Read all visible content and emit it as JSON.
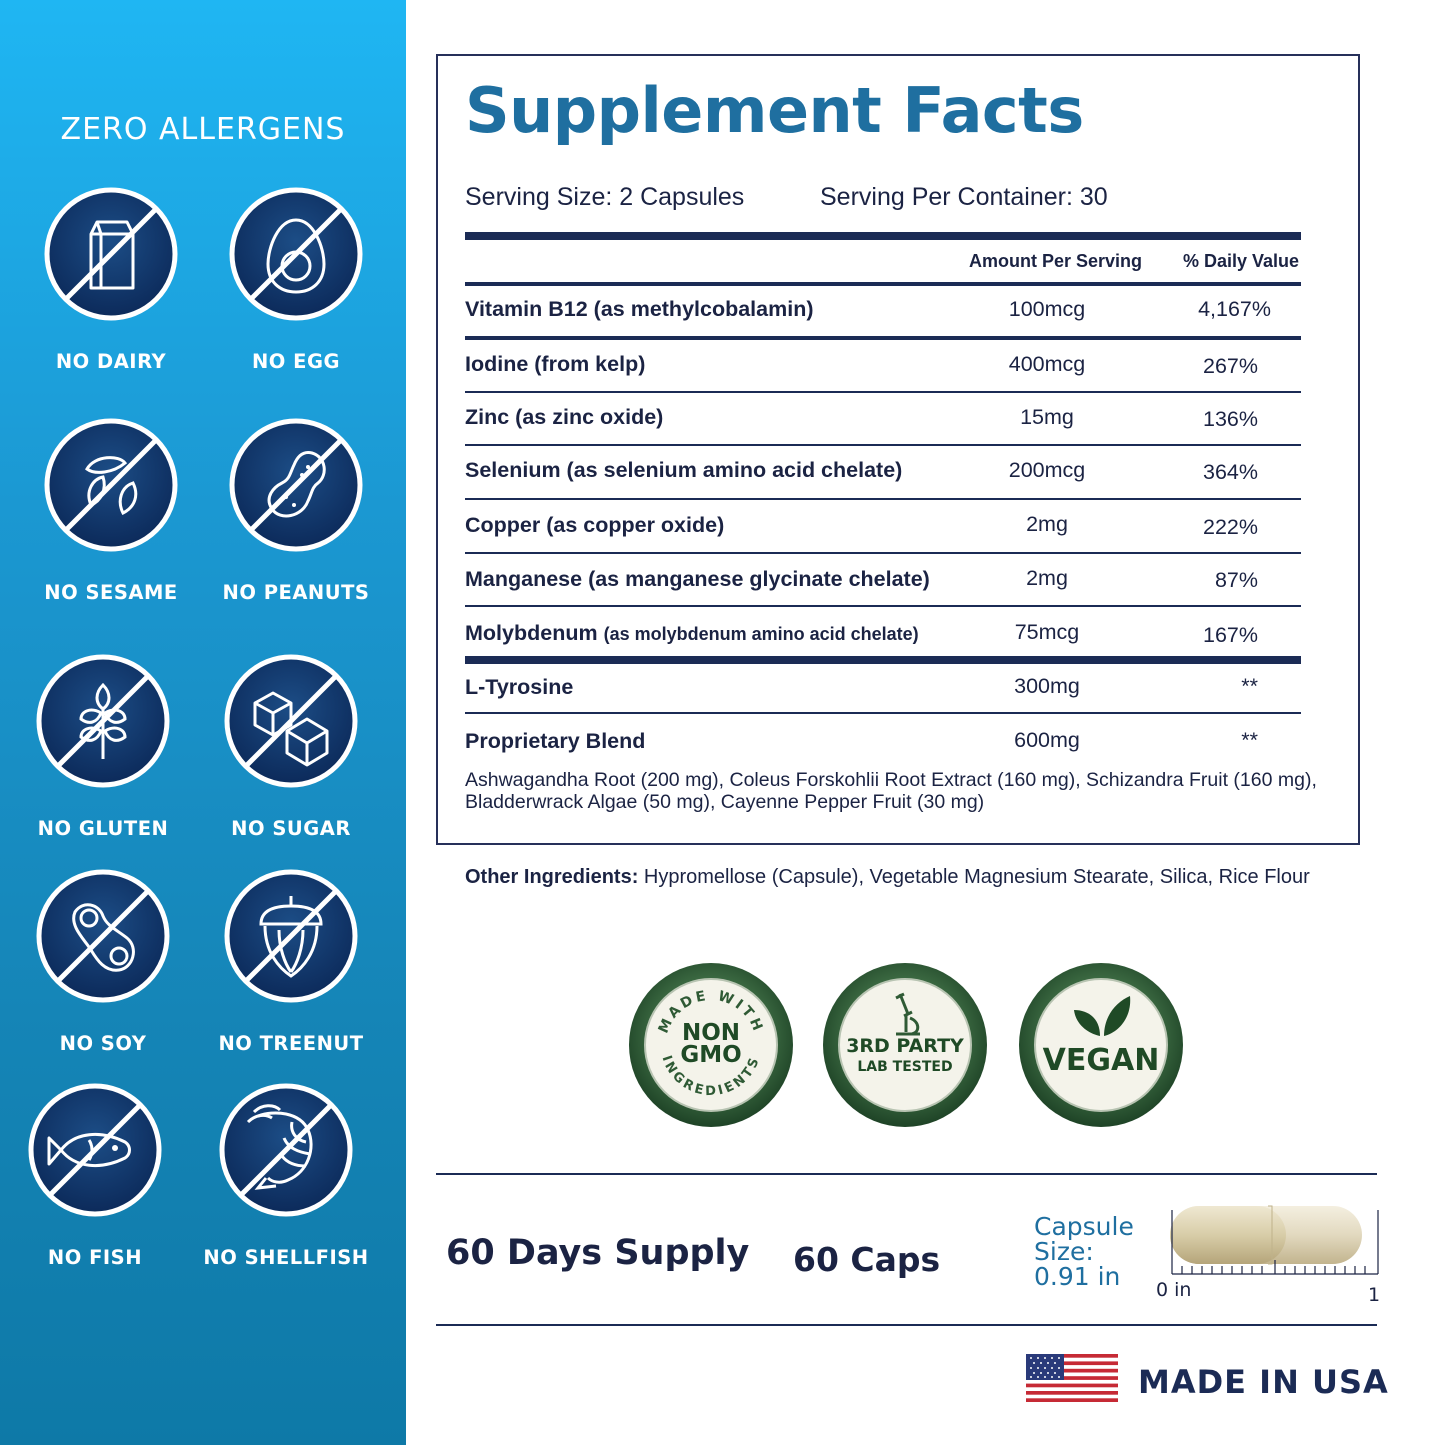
{
  "sidebar": {
    "title": "ZERO ALLERGENS",
    "allergens": [
      {
        "label": "NO DAIRY",
        "icon": "milk-carton-icon"
      },
      {
        "label": "NO EGG",
        "icon": "egg-icon"
      },
      {
        "label": "NO SESAME",
        "icon": "sesame-icon"
      },
      {
        "label": "NO PEANUTS",
        "icon": "peanut-icon"
      },
      {
        "label": "NO GLUTEN",
        "icon": "wheat-icon"
      },
      {
        "label": "NO SUGAR",
        "icon": "sugar-cube-icon"
      },
      {
        "label": "NO SOY",
        "icon": "soybean-icon"
      },
      {
        "label": "NO TREENUT",
        "icon": "acorn-icon"
      },
      {
        "label": "NO FISH",
        "icon": "fish-icon"
      },
      {
        "label": "NO SHELLFISH",
        "icon": "shrimp-icon"
      }
    ]
  },
  "facts": {
    "title": "Supplement Facts",
    "serving_size": "Serving Size: 2 Capsules",
    "servings_per_container": "Serving Per Container: 30",
    "col_amount": "Amount Per Serving",
    "col_dv": "% Daily Value",
    "rows": [
      {
        "name": "Vitamin B12 (as methylcobalamin)",
        "amount": "100mcg",
        "dv": "4,167%"
      },
      {
        "name": "Iodine (from kelp)",
        "amount": "400mcg",
        "dv": "267%"
      },
      {
        "name": "Zinc (as zinc oxide)",
        "amount": "15mg",
        "dv": "136%"
      },
      {
        "name": "Selenium (as selenium amino acid chelate)",
        "amount": "200mcg",
        "dv": "364%"
      },
      {
        "name": "Copper (as copper oxide)",
        "amount": "2mg",
        "dv": "222%"
      },
      {
        "name": "Manganese (as manganese glycinate chelate)",
        "amount": "2mg",
        "dv": "87%"
      },
      {
        "name": "Molybdenum",
        "name_detail": "(as molybdenum amino acid chelate)",
        "amount": "75mcg",
        "dv": "167%"
      },
      {
        "name": "L-Tyrosine",
        "amount": "300mg",
        "dv": "**"
      },
      {
        "name": "Proprietary Blend",
        "amount": "600mg",
        "dv": "**"
      }
    ],
    "blend_detail": "Ashwagandha Root (200 mg), Coleus Forskohlii Root Extract (160 mg), Schizandra Fruit (160 mg), Bladderwrack Algae (50 mg), Cayenne Pepper Fruit (30 mg)",
    "other_label": "Other Ingredients:",
    "other_text": " Hypromellose (Capsule), Vegetable Magnesium Stearate, Silica, Rice Flour"
  },
  "seals": {
    "nongmo": {
      "arc_top": "MADE WITH",
      "line1": "NON",
      "line2": "GMO",
      "arc_bottom": "INGREDIENTS",
      "icon": "non-gmo-seal-icon"
    },
    "lab": {
      "line1": "3RD PARTY",
      "line2": "LAB TESTED",
      "icon": "microscope-icon"
    },
    "vegan": {
      "text": "VEGAN",
      "icon": "leaves-icon"
    },
    "colors": {
      "green": "#2f5a35",
      "cream": "#f4f3ea",
      "dark_green": "#1f4a26"
    }
  },
  "footer": {
    "supply": "60 Days Supply",
    "caps": "60 Caps",
    "capsule_line1": "Capsule",
    "capsule_line2": "Size:",
    "capsule_line3": "0.91 in",
    "ruler_start": "0 in",
    "ruler_end": "1",
    "capsule_length_in": 0.91,
    "made_in": "MADE IN USA",
    "flag_icon": "us-flag-icon"
  },
  "colors": {
    "navy": "#1b2b55",
    "title_blue": "#1f6fa0",
    "sidebar_top": "#1fb6f3",
    "sidebar_bottom": "#0e79a7"
  }
}
